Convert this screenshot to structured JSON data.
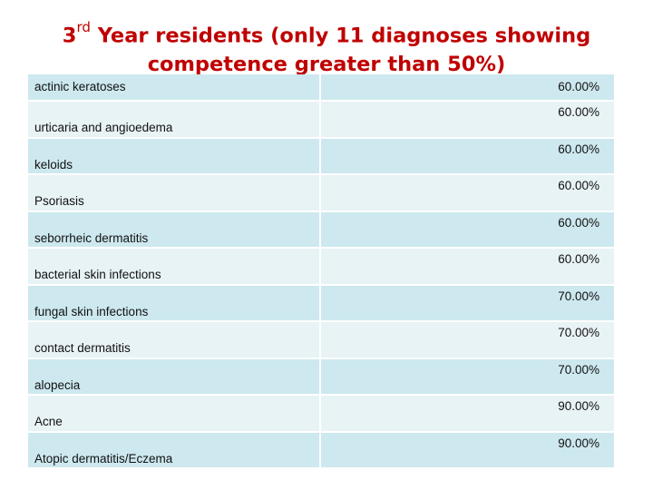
{
  "title": {
    "line1_prefix": "3",
    "line1_sup": "rd",
    "line1_rest": " Year residents (only 11 diagnoses showing",
    "line2": "competence greater than 50%)"
  },
  "rows": [
    {
      "diagnosis": "actinic keratoses",
      "value": "60.00%"
    },
    {
      "diagnosis": "urticaria and angioedema",
      "value": "60.00%"
    },
    {
      "diagnosis": "keloids",
      "value": "60.00%"
    },
    {
      "diagnosis": "Psoriasis",
      "value": "60.00%"
    },
    {
      "diagnosis": "seborrheic dermatitis",
      "value": "60.00%"
    },
    {
      "diagnosis": "bacterial skin infections",
      "value": "60.00%"
    },
    {
      "diagnosis": "fungal skin infections",
      "value": "70.00%"
    },
    {
      "diagnosis": "contact dermatitis",
      "value": "70.00%"
    },
    {
      "diagnosis": "alopecia",
      "value": "70.00%"
    },
    {
      "diagnosis": "Acne",
      "value": "90.00%"
    },
    {
      "diagnosis": "Atopic dermatitis/Eczema",
      "value": "90.00%"
    }
  ],
  "colors": {
    "title": "#c00000",
    "row_odd": "#cde8ef",
    "row_even": "#e8f3f6"
  }
}
